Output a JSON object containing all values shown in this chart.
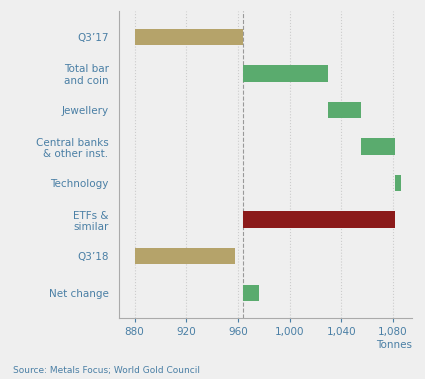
{
  "categories": [
    "Q3’17",
    "Total bar\nand coin",
    "Jewellery",
    "Central banks\n& other inst.",
    "Technology",
    "ETFs &\nsimilar",
    "Q3’18",
    "Net change"
  ],
  "bar_left": [
    880,
    964,
    1030,
    1055,
    1082,
    964,
    880,
    964
  ],
  "bar_right": [
    964,
    1030,
    1055,
    1082,
    1086,
    1082,
    958,
    976
  ],
  "bar_colors": [
    "#b5a36a",
    "#5aab6e",
    "#5aab6e",
    "#5aab6e",
    "#5aab6e",
    "#8b1a1a",
    "#b5a36a",
    "#5aab6e"
  ],
  "xlim": [
    868,
    1095
  ],
  "xticks": [
    880,
    920,
    960,
    1000,
    1040,
    1080
  ],
  "xlabel": "Tonnes",
  "source": "Source: Metals Focus; World Gold Council",
  "bg_color": "#efefef",
  "grid_color": "#cccccc",
  "text_color": "#4a7fa5",
  "bar_height": 0.45,
  "vline_x": 964,
  "figsize": [
    4.25,
    3.79
  ],
  "dpi": 100
}
